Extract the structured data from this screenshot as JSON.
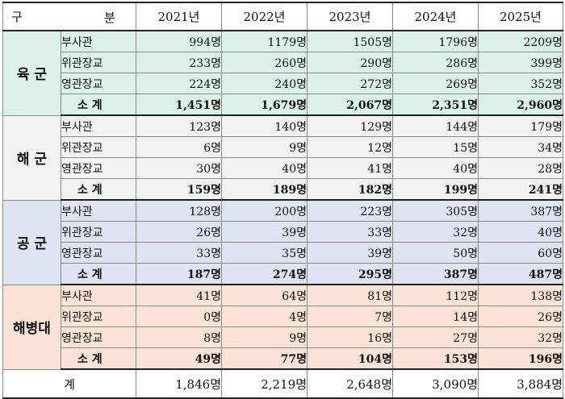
{
  "header": {
    "label_left": "구",
    "label_right": "분",
    "years": [
      "2021년",
      "2022년",
      "2023년",
      "2024년",
      "2025년"
    ]
  },
  "colors": {
    "army": "#dcf2e6",
    "navy": "#f2f2f2",
    "air_force": "#dfe4f3",
    "marines": "#fbe3d5"
  },
  "branches": [
    {
      "name": "육  군",
      "rows": [
        {
          "category": "부사관",
          "values": [
            "994명",
            "1179명",
            "1505명",
            "1796명",
            "2209명"
          ]
        },
        {
          "category": "위관장교",
          "values": [
            "233명",
            "260명",
            "290명",
            "286명",
            "399명"
          ]
        },
        {
          "category": "영관장교",
          "values": [
            "224명",
            "240명",
            "272명",
            "269명",
            "352명"
          ]
        }
      ],
      "subtotal": {
        "category": "소  계",
        "values": [
          "1,451명",
          "1,679명",
          "2,067명",
          "2,351명",
          "2,960명"
        ]
      }
    },
    {
      "name": "해  군",
      "rows": [
        {
          "category": "부사관",
          "values": [
            "123명",
            "140명",
            "129명",
            "144명",
            "179명"
          ]
        },
        {
          "category": "위관장교",
          "values": [
            "6명",
            "9명",
            "12명",
            "15명",
            "34명"
          ]
        },
        {
          "category": "영관장교",
          "values": [
            "30명",
            "40명",
            "41명",
            "40명",
            "28명"
          ]
        }
      ],
      "subtotal": {
        "category": "소  계",
        "values": [
          "159명",
          "189명",
          "182명",
          "199명",
          "241명"
        ]
      }
    },
    {
      "name": "공  군",
      "rows": [
        {
          "category": "부사관",
          "values": [
            "128명",
            "200명",
            "223명",
            "305명",
            "387명"
          ]
        },
        {
          "category": "위관장교",
          "values": [
            "26명",
            "39명",
            "33명",
            "32명",
            "40명"
          ]
        },
        {
          "category": "영관장교",
          "values": [
            "33명",
            "35명",
            "39명",
            "50명",
            "60명"
          ]
        }
      ],
      "subtotal": {
        "category": "소  계",
        "values": [
          "187명",
          "274명",
          "295명",
          "387명",
          "487명"
        ]
      }
    },
    {
      "name": "해병대",
      "rows": [
        {
          "category": "부사관",
          "values": [
            "41명",
            "64명",
            "81명",
            "112명",
            "138명"
          ]
        },
        {
          "category": "위관장교",
          "values": [
            "0명",
            "4명",
            "7명",
            "14명",
            "26명"
          ]
        },
        {
          "category": "영관장교",
          "values": [
            "8명",
            "9명",
            "16명",
            "27명",
            "32명"
          ]
        }
      ],
      "subtotal": {
        "category": "소  계",
        "values": [
          "49명",
          "77명",
          "104명",
          "153명",
          "196명"
        ]
      }
    }
  ],
  "total": {
    "label": "계",
    "values": [
      "1,846명",
      "2,219명",
      "2,648명",
      "3,090명",
      "3,884명"
    ]
  }
}
